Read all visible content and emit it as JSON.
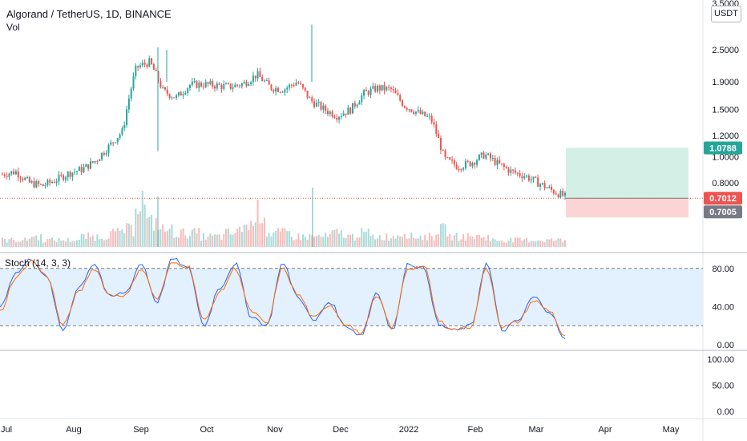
{
  "header": {
    "symbol_title": "Algorand / TetherUS, 1D, BINANCE",
    "volume_label": "Vol",
    "stoch_label": "Stoch (14, 3, 3)",
    "currency_button": "USDT"
  },
  "colors": {
    "up": "#26a69a",
    "down": "#ef5350",
    "k_line": "#2962ff",
    "d_line": "#ff6d00",
    "profit_zone": "#d3efe6",
    "loss_zone": "#fbd5d6",
    "stoch_band": "#e3f0fd"
  },
  "chart_data": [
    {
      "type": "candlestick",
      "title": "Algorand / TetherUS, 1D, BINANCE",
      "y_scale": "log",
      "y_ticks": [
        "3.5000",
        "2.5000",
        "1.9000",
        "1.5000",
        "1.2000",
        "1.0000",
        "0.8000"
      ],
      "x_ticks": [
        "Jul",
        "Aug",
        "Sep",
        "Oct",
        "Nov",
        "Dec",
        "2022",
        "Feb",
        "Mar",
        "Apr",
        "May"
      ],
      "approx_closes": [
        0.86,
        0.88,
        0.8,
        0.78,
        0.82,
        0.87,
        0.9,
        0.97,
        1.1,
        1.25,
        2.15,
        2.25,
        1.75,
        1.66,
        1.85,
        1.86,
        1.84,
        1.82,
        1.87,
        2.02,
        1.81,
        1.78,
        1.9,
        1.62,
        1.5,
        1.42,
        1.5,
        1.72,
        1.8,
        1.78,
        1.55,
        1.46,
        1.38,
        0.98,
        0.92,
        0.95,
        1.02,
        0.94,
        0.88,
        0.85,
        0.8,
        0.75,
        0.71
      ],
      "last_price": "0.7012",
      "price_badges": [
        "1.0788",
        "0.7012",
        "0.7005"
      ],
      "position": {
        "entry": 0.7012,
        "target": 1.0788,
        "stop": 0.64
      }
    },
    {
      "type": "bar",
      "title": "Vol",
      "note": "volume histogram, relative heights",
      "values": [
        2,
        2,
        3,
        2,
        2,
        2,
        3,
        3,
        4,
        5,
        14,
        7,
        5,
        4,
        4,
        3,
        3,
        4,
        6,
        10,
        4,
        4,
        3,
        3,
        3,
        4,
        3,
        4,
        3,
        3,
        4,
        3,
        3,
        5,
        3,
        3,
        3,
        2,
        2,
        2,
        2,
        2,
        2
      ]
    },
    {
      "type": "line",
      "title": "Stoch (14, 3, 3)",
      "y_ticks": [
        "80.00",
        "40.00",
        "0.00"
      ],
      "bands": [
        80,
        20
      ],
      "ylim": [
        0,
        100
      ],
      "series": [
        {
          "name": "%K",
          "values": [
            40,
            75,
            90,
            70,
            15,
            60,
            85,
            50,
            55,
            85,
            45,
            90,
            80,
            20,
            60,
            85,
            30,
            20,
            85,
            50,
            25,
            45,
            20,
            10,
            55,
            15,
            85,
            80,
            20,
            15,
            20,
            85,
            15,
            25,
            50,
            35,
            5
          ]
        },
        {
          "name": "%D",
          "values": [
            35,
            70,
            88,
            72,
            20,
            55,
            80,
            52,
            52,
            80,
            48,
            86,
            82,
            25,
            55,
            80,
            35,
            22,
            80,
            52,
            28,
            42,
            22,
            12,
            50,
            18,
            80,
            82,
            24,
            16,
            19,
            80,
            18,
            24,
            46,
            36,
            8
          ]
        }
      ]
    },
    {
      "type": "line",
      "title": "",
      "y_ticks": [
        "100.00",
        "50.00",
        "0.00"
      ],
      "series": []
    }
  ]
}
